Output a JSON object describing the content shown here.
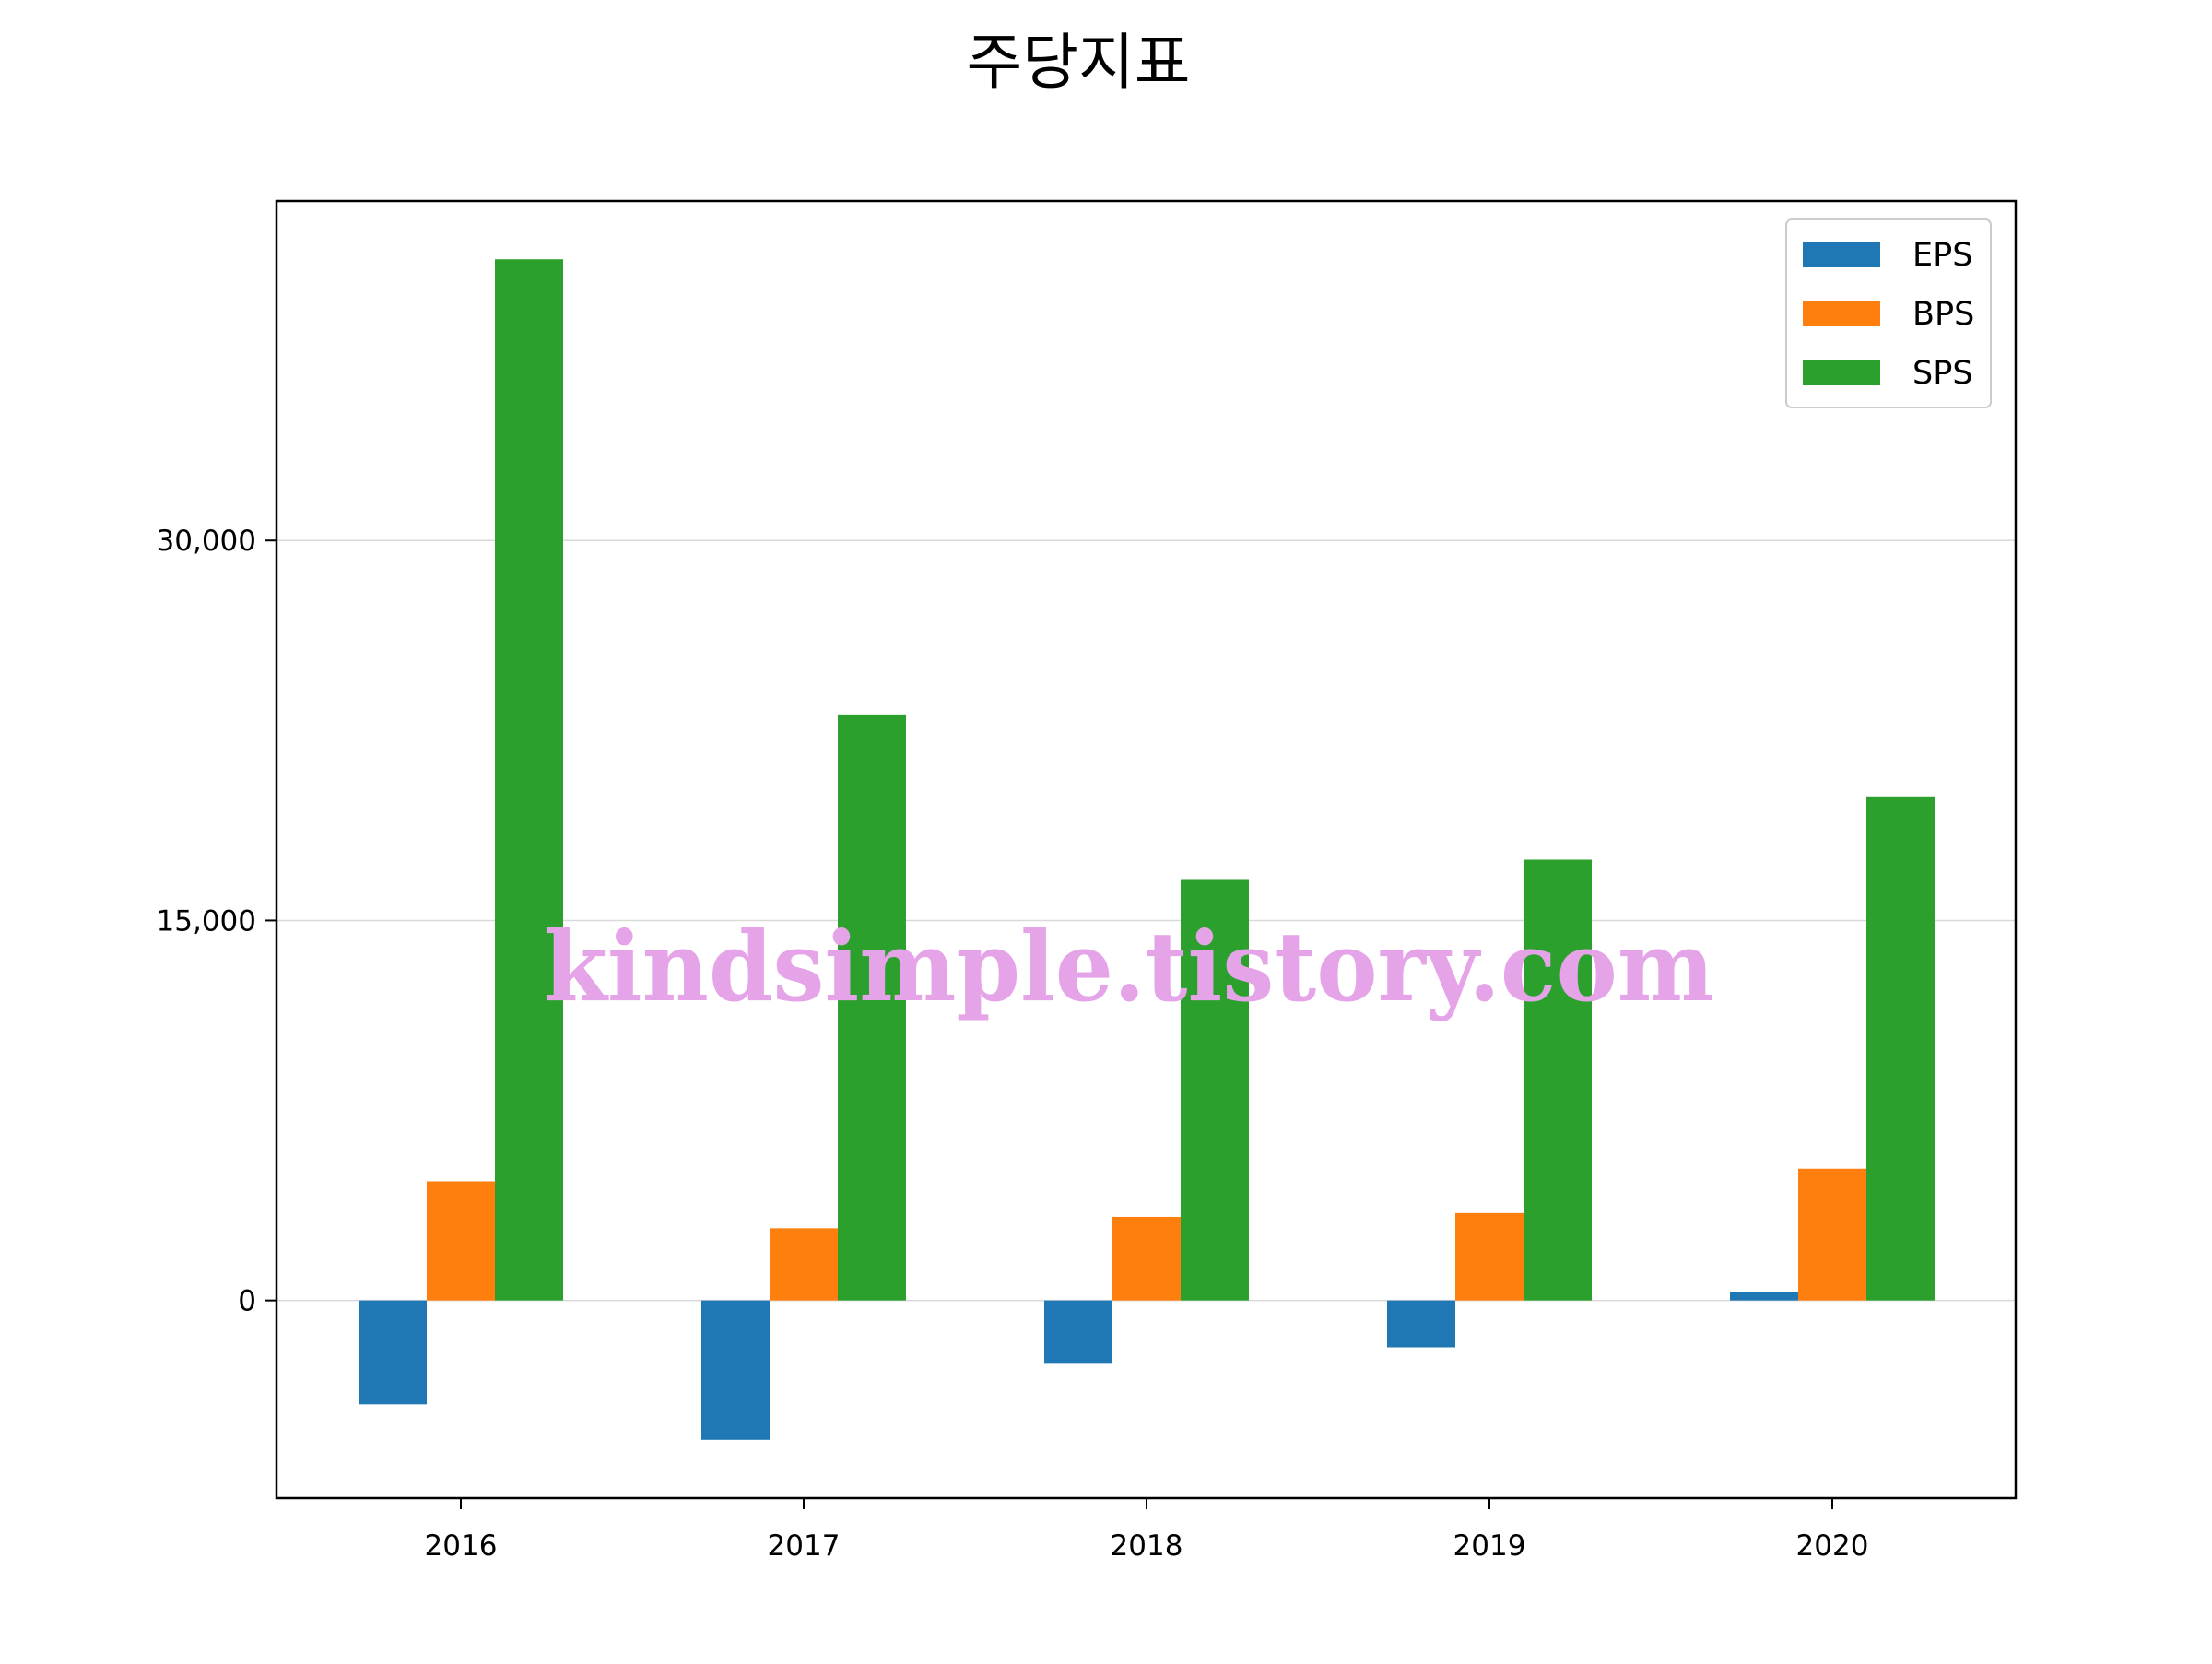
{
  "chart_data": {
    "type": "bar",
    "title": "주당지표",
    "xlabel": "",
    "ylabel": "",
    "categories": [
      "2016",
      "2017",
      "2018",
      "2019",
      "2020"
    ],
    "series": [
      {
        "name": "EPS",
        "color": "#1f77b4",
        "values": [
          -4100,
          -5500,
          -2500,
          -1850,
          350
        ]
      },
      {
        "name": "BPS",
        "color": "#ff7f0e",
        "values": [
          4700,
          2850,
          3300,
          3450,
          5200
        ]
      },
      {
        "name": "SPS",
        "color": "#2ca02c",
        "values": [
          41100,
          23100,
          16600,
          17400,
          19900
        ]
      }
    ],
    "y_ticks": [
      0,
      15000,
      30000
    ],
    "y_tick_labels": [
      "0",
      "15,000",
      "30,000"
    ],
    "ylim": [
      -7800,
      43400
    ],
    "grid": "horizontal",
    "legend_position": "top-right"
  },
  "watermark": {
    "text": "kindsimple.tistory.com",
    "color": "#e5a3e8"
  }
}
